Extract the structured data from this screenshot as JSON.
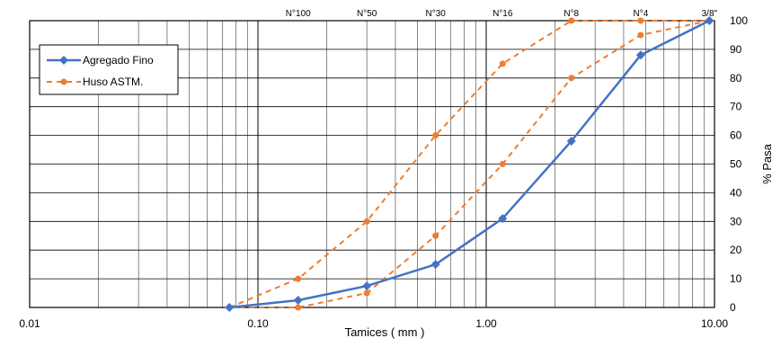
{
  "chart_data": {
    "type": "line",
    "x_scale": "log",
    "xlim": [
      0.01,
      10.0
    ],
    "ylim": [
      0,
      100
    ],
    "xlabel": "Tamices ( mm )",
    "ylabel": "% Pasa",
    "x_tick_labels": [
      "0.01",
      "0.10",
      "1.00",
      "10.00"
    ],
    "y_ticks": [
      0,
      10,
      20,
      30,
      40,
      50,
      60,
      70,
      80,
      90,
      100
    ],
    "grid": true,
    "legend_position": "top-left",
    "sieves": [
      {
        "label": "N°100",
        "size": 0.15
      },
      {
        "label": "N°50",
        "size": 0.3
      },
      {
        "label": "N°30",
        "size": 0.6
      },
      {
        "label": "N°16",
        "size": 1.18
      },
      {
        "label": "N°8",
        "size": 2.36
      },
      {
        "label": "N°4",
        "size": 4.75
      },
      {
        "label": "3/8\"",
        "size": 9.5
      }
    ],
    "series": [
      {
        "name": "Agregado Fino",
        "color": "#4472C4",
        "marker": "diamond",
        "style": "solid",
        "points": [
          [
            0.075,
            0
          ],
          [
            0.15,
            2.5
          ],
          [
            0.3,
            7.5
          ],
          [
            0.6,
            15
          ],
          [
            1.18,
            31
          ],
          [
            2.36,
            58
          ],
          [
            4.75,
            88
          ],
          [
            9.5,
            100
          ]
        ]
      },
      {
        "name": "Huso ASTM.",
        "color": "#ED7D31",
        "marker": "circle",
        "style": "dashed",
        "points": [
          [
            0.075,
            0
          ],
          [
            0.15,
            10
          ],
          [
            0.3,
            30
          ],
          [
            0.6,
            60
          ],
          [
            1.18,
            85
          ],
          [
            2.36,
            100
          ],
          [
            4.75,
            100
          ],
          [
            9.5,
            100
          ]
        ]
      },
      {
        "name": "",
        "color": "#ED7D31",
        "marker": "circle",
        "style": "dashed",
        "points": [
          [
            0.075,
            0
          ],
          [
            0.15,
            0
          ],
          [
            0.3,
            5
          ],
          [
            0.6,
            25
          ],
          [
            1.18,
            50
          ],
          [
            2.36,
            80
          ],
          [
            4.75,
            95
          ],
          [
            9.5,
            100
          ]
        ]
      }
    ]
  }
}
